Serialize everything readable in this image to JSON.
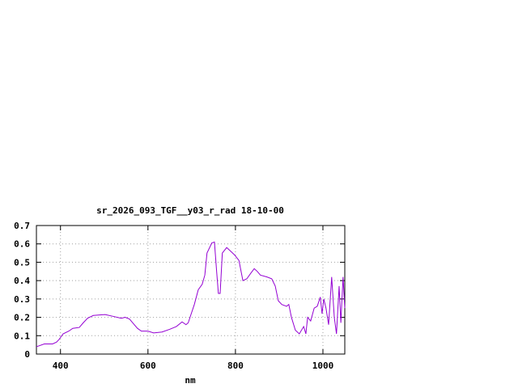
{
  "chart_data": {
    "type": "line",
    "title": "sr_2026_093_TGF__y03_r_rad 18-10-00",
    "x_label": "nm",
    "x": [
      345,
      363,
      382,
      391,
      397,
      406,
      419,
      428,
      443,
      452,
      462,
      475,
      502,
      521,
      539,
      548,
      558,
      567,
      576,
      585,
      600,
      613,
      632,
      650,
      665,
      678,
      687,
      692,
      706,
      715,
      724,
      730,
      735,
      746,
      752,
      757,
      761,
      765,
      770,
      780,
      789,
      798,
      808,
      817,
      826,
      835,
      843,
      850,
      857,
      872,
      883,
      891,
      898,
      906,
      917,
      922,
      928,
      937,
      946,
      956,
      961,
      965,
      972,
      980,
      987,
      994,
      998,
      1002,
      1007,
      1013,
      1020,
      1026,
      1031,
      1037,
      1041,
      1046,
      1050
    ],
    "series": [
      {
        "name": "sr_2026_093_TGF__y03_r_rad 18-10-00",
        "color": "#9400d3",
        "values": [
          0.04,
          0.055,
          0.055,
          0.065,
          0.08,
          0.11,
          0.125,
          0.14,
          0.145,
          0.17,
          0.195,
          0.21,
          0.215,
          0.205,
          0.195,
          0.2,
          0.19,
          0.165,
          0.14,
          0.125,
          0.125,
          0.115,
          0.12,
          0.135,
          0.15,
          0.175,
          0.16,
          0.17,
          0.27,
          0.35,
          0.38,
          0.43,
          0.55,
          0.605,
          0.61,
          0.45,
          0.33,
          0.33,
          0.55,
          0.58,
          0.56,
          0.54,
          0.51,
          0.4,
          0.41,
          0.44,
          0.465,
          0.45,
          0.43,
          0.42,
          0.41,
          0.37,
          0.29,
          0.27,
          0.26,
          0.27,
          0.2,
          0.13,
          0.11,
          0.15,
          0.11,
          0.2,
          0.18,
          0.25,
          0.26,
          0.31,
          0.22,
          0.3,
          0.25,
          0.16,
          0.42,
          0.2,
          0.11,
          0.37,
          0.17,
          0.42,
          0.25
        ]
      }
    ],
    "xlim": [
      345,
      1050
    ],
    "xticks": [
      400,
      600,
      800,
      1000
    ],
    "ylim": [
      0,
      0.7
    ],
    "yticks": [
      0,
      0.1,
      0.2,
      0.3,
      0.4,
      0.5,
      0.6,
      0.7
    ],
    "grid": true
  }
}
